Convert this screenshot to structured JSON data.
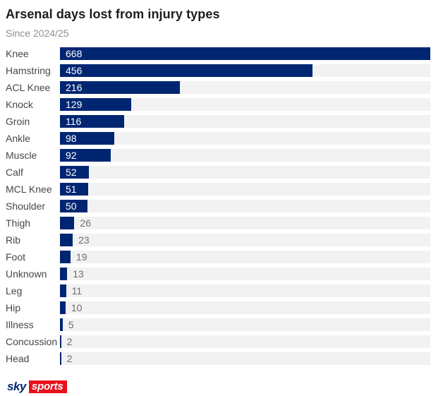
{
  "header": {
    "title": "Arsenal days lost from injury types",
    "subtitle": "Since 2024/25"
  },
  "chart_data": {
    "type": "bar",
    "orientation": "horizontal",
    "title": "Arsenal days lost from injury types",
    "subtitle": "Since 2024/25",
    "categories": [
      "Knee",
      "Hamstring",
      "ACL Knee",
      "Knock",
      "Groin",
      "Ankle",
      "Muscle",
      "Calf",
      "MCL Knee",
      "Shoulder",
      "Thigh",
      "Rib",
      "Foot",
      "Unknown",
      "Leg",
      "Hip",
      "Illness",
      "Concussion",
      "Head"
    ],
    "values": [
      668,
      456,
      216,
      129,
      116,
      98,
      92,
      52,
      51,
      50,
      26,
      23,
      19,
      13,
      11,
      10,
      5,
      2,
      2
    ],
    "xlabel": "",
    "ylabel": "",
    "xlim": [
      0,
      668
    ],
    "grid": false,
    "legend": false,
    "value_labels": true,
    "inside_label_min": 50
  },
  "colors": {
    "bar": "#002672",
    "track": "#f2f2f2",
    "inside_label": "#ffffff",
    "outside_label": "#6f6f6f",
    "category_label": "#474747",
    "title": "#1c1c1c",
    "subtitle": "#8f8f8f",
    "logo_red": "#e8111c",
    "logo_navy": "#002672"
  },
  "logo": {
    "brand": "sky",
    "section": "sports"
  }
}
